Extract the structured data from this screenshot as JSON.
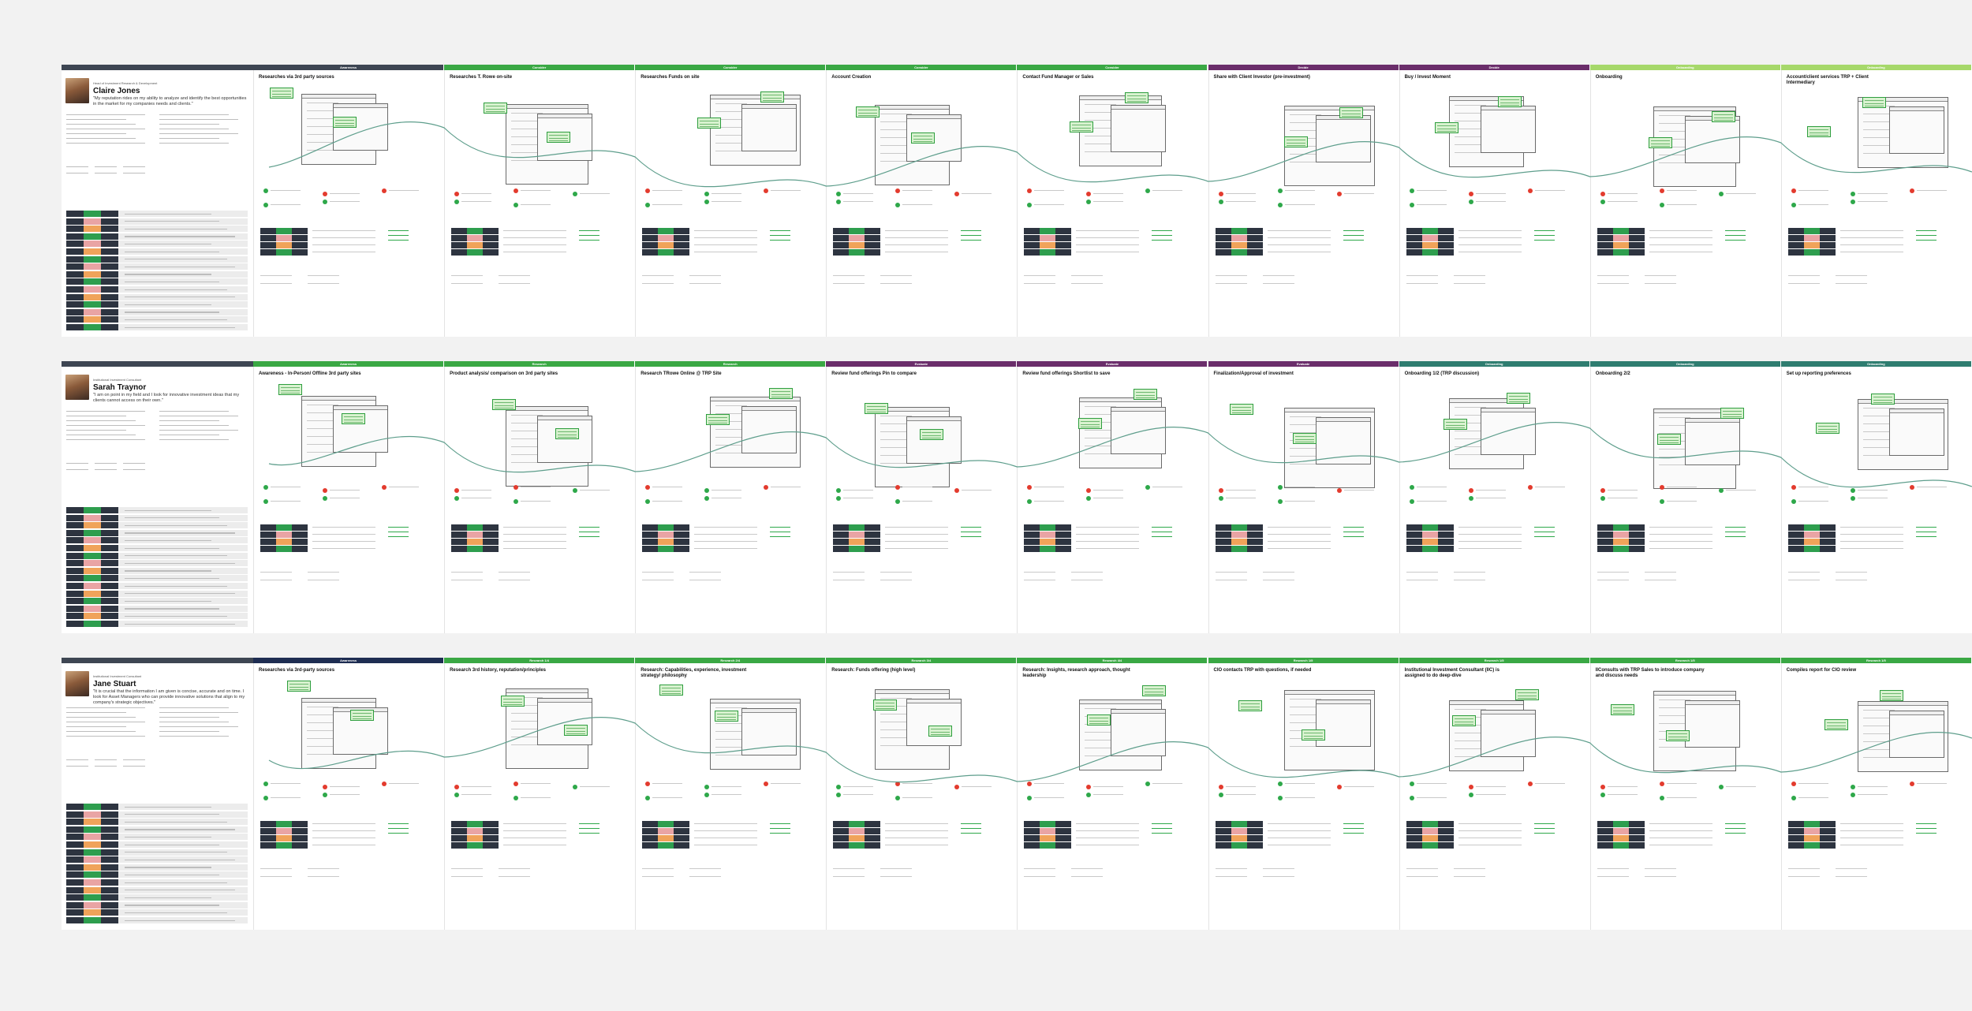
{
  "colors": {
    "awareness": "#3e4653",
    "consider": "#3aa844",
    "decide": "#6b2e6b",
    "onboard": "#a6d86a",
    "teal": "#2f7d70",
    "navy": "#1e2d52",
    "sticky": "#d9f2d0",
    "line": "#5e9e8c"
  },
  "boards": [
    {
      "persona": {
        "role": "Head of Investment Research & Development",
        "name": "Claire Jones",
        "quote": "\"My reputation rides on my ability to analyze and identify the best opportunities in the market for my companies needs and clients.\""
      },
      "stages": [
        {
          "title": "Researches via 3rd party sources",
          "header": "Awareness",
          "cat": "awareness"
        },
        {
          "title": "Researches T. Rowe on-site",
          "header": "Consider",
          "cat": "consider"
        },
        {
          "title": "Researches Funds on site",
          "header": "Consider",
          "cat": "consider"
        },
        {
          "title": "Account Creation",
          "header": "Consider",
          "cat": "consider"
        },
        {
          "title": "Contact Fund Manager or Sales",
          "header": "Consider",
          "cat": "consider"
        },
        {
          "title": "Share with Client Investor (pre-investment)",
          "header": "Decide",
          "cat": "decide"
        },
        {
          "title": "Buy / Invest Moment",
          "header": "Decide",
          "cat": "decide"
        },
        {
          "title": "Onboarding",
          "header": "Onboarding",
          "cat": "onboard"
        },
        {
          "title": "Account/client services TRP + Client Intermediary",
          "header": "Onboarding",
          "cat": "onboard"
        }
      ]
    },
    {
      "persona": {
        "role": "Institutional Investment Consultant",
        "name": "Sarah Traynor",
        "quote": "\"I am on point in my field and I look for innovative investment ideas that my clients cannot access on their own.\""
      },
      "stages": [
        {
          "title": "Awareness - In-Person/ Offline 3rd party sites",
          "header": "Awareness",
          "cat": "consider"
        },
        {
          "title": "Product analysis/ comparison on 3rd party sites",
          "header": "Research",
          "cat": "consider"
        },
        {
          "title": "Research TRowe Online @ TRP Site",
          "header": "Research",
          "cat": "consider"
        },
        {
          "title": "Review fund offerings Pin to compare",
          "header": "Evaluate",
          "cat": "decide"
        },
        {
          "title": "Review fund offerings Shortlist to save",
          "header": "Evaluate",
          "cat": "decide"
        },
        {
          "title": "Finalization/Approval of investment",
          "header": "Evaluate",
          "cat": "decide"
        },
        {
          "title": "Onboarding 1/2 (TRP discussion)",
          "header": "Onboarding",
          "cat": "teal"
        },
        {
          "title": "Onboarding 2/2",
          "header": "Onboarding",
          "cat": "teal"
        },
        {
          "title": "Set up reporting preferences",
          "header": "Onboarding",
          "cat": "teal"
        }
      ]
    },
    {
      "persona": {
        "role": "Institutional Investment Consultant",
        "name": "Jane Stuart",
        "quote": "\"It is crucial that the information I am given is concise, accurate and on time. I look for Asset Managers who can provide innovative solutions that align to my company's strategic objectives.\""
      },
      "stages": [
        {
          "title": "Researches via 3rd-party sources",
          "header": "Awareness",
          "cat": "navy"
        },
        {
          "title": "Research 3rd history, reputation/principles",
          "header": "Research 1/4",
          "cat": "consider"
        },
        {
          "title": "Research: Capabilities, experience, investment strategy/ philosophy",
          "header": "Research 2/4",
          "cat": "consider"
        },
        {
          "title": "Research: Funds offering (high level)",
          "header": "Research 3/4",
          "cat": "consider"
        },
        {
          "title": "Research: Insights, research approach, thought leadership",
          "header": "Research 4/4",
          "cat": "consider"
        },
        {
          "title": "CIO contacts TRP with questions, if needed",
          "header": "Research 1/5",
          "cat": "consider"
        },
        {
          "title": "Institutional Investment Consultant (IIC) is assigned to do deep-dive",
          "header": "Research 1/5",
          "cat": "consider"
        },
        {
          "title": "IIConsults with TRP Sales to introduce company and discuss needs",
          "header": "Research 1/5",
          "cat": "consider"
        },
        {
          "title": "Compiles report for CIO review",
          "header": "Research 1/5",
          "cat": "consider"
        }
      ]
    }
  ]
}
